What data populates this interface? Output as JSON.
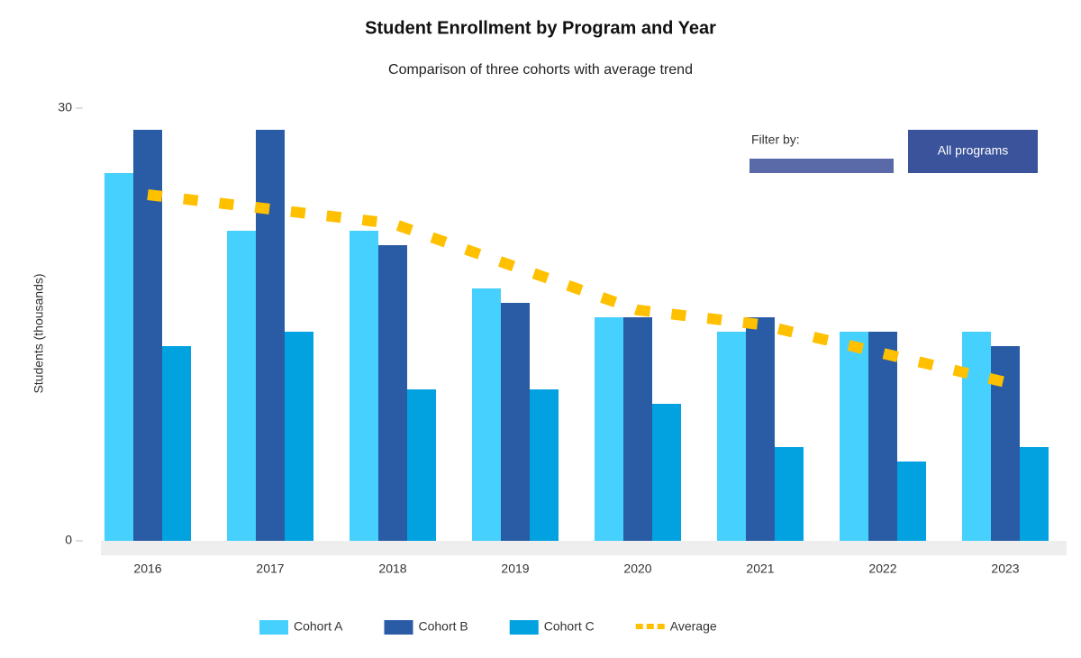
{
  "header": {
    "filter_label": "Filter by:",
    "button": "All programs"
  },
  "chart_data": {
    "type": "bar",
    "title": "Student Enrollment by Program and Year",
    "subtitle": "Comparison of three cohorts with average trend",
    "y_label": "Students (thousands)",
    "categories": [
      "2016",
      "2017",
      "2018",
      "2019",
      "2020",
      "2021",
      "2022",
      "2023"
    ],
    "series": [
      {
        "name": "Cohort A",
        "color": "#45d0fe",
        "values": [
          25.5,
          21.5,
          21.5,
          17.5,
          15.5,
          14.5,
          14.5,
          14.5
        ]
      },
      {
        "name": "Cohort B",
        "color": "#2a5ca6",
        "values": [
          28.5,
          28.5,
          20.5,
          16.5,
          15.5,
          15.5,
          14.5,
          13.5
        ]
      },
      {
        "name": "Cohort C",
        "color": "#02a2e0",
        "values": [
          13.5,
          14.5,
          10.5,
          10.5,
          9.5,
          6.5,
          5.5,
          6.5
        ]
      },
      {
        "name": "Average",
        "color": "#ffc000",
        "type": "line",
        "values": [
          24,
          23,
          22,
          19,
          16,
          15,
          13,
          11
        ]
      }
    ],
    "ylim": [
      0,
      30
    ],
    "yticks": [
      0,
      30
    ],
    "grid": false
  }
}
